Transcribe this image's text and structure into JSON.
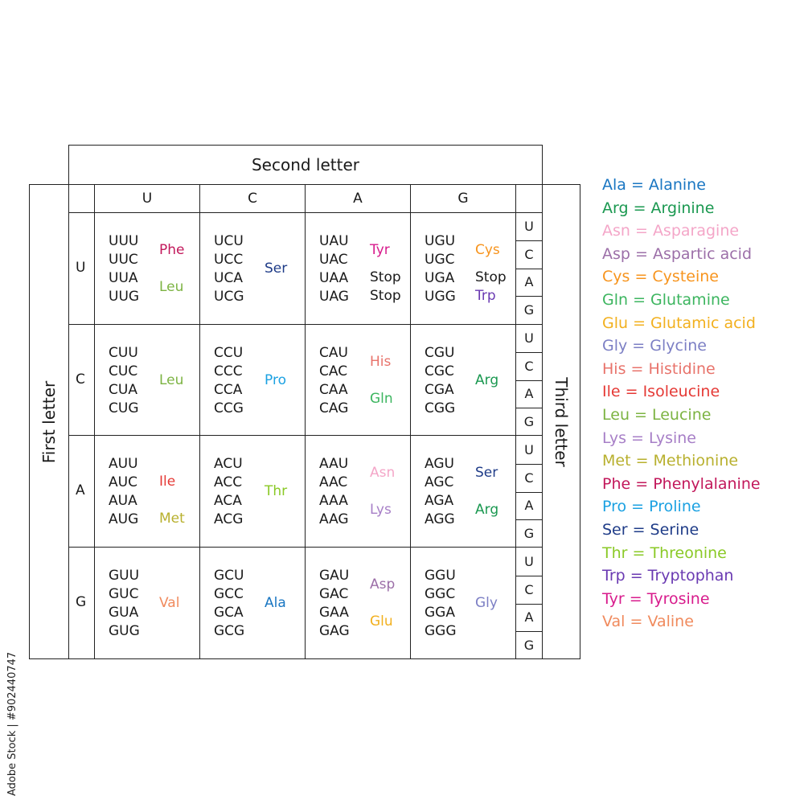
{
  "titles": {
    "second_letter": "Second letter",
    "first_letter": "First letter",
    "third_letter": "Third letter"
  },
  "bases": [
    "U",
    "C",
    "A",
    "G"
  ],
  "colors": {
    "Phe": "#c2185b",
    "Leu": "#7cb342",
    "Ser": "#1f3c88",
    "Tyr": "#d81b8c",
    "Stop": "#1a1a1a",
    "Cys": "#f7941d",
    "Trp": "#6a3ab2",
    "Pro": "#1ba1e2",
    "His": "#e8736b",
    "Gln": "#3cb55f",
    "Arg": "#1a9850",
    "Ile": "#e53935",
    "Met": "#b8b02e",
    "Thr": "#8ac926",
    "Asn": "#f4a6c8",
    "Lys": "#a77fc7",
    "Val": "#f08a5d",
    "Ala": "#1976c2",
    "Asp": "#9c6fa8",
    "Glu": "#f2b01e",
    "Gly": "#7c7fc4"
  },
  "rows": [
    {
      "first": "U",
      "cells": [
        {
          "codons": [
            "UUU",
            "UUC",
            "UUA",
            "UUG"
          ],
          "amino": [
            {
              "name": "Phe",
              "line": 0.5
            },
            {
              "name": "Leu",
              "line": 2.5
            }
          ]
        },
        {
          "codons": [
            "UCU",
            "UCC",
            "UCA",
            "UCG"
          ],
          "amino": [
            {
              "name": "Ser",
              "line": 1.5
            }
          ]
        },
        {
          "codons": [
            "UAU",
            "UAC",
            "UAA",
            "UAG"
          ],
          "amino": [
            {
              "name": "Tyr",
              "line": 0.5
            },
            {
              "name": "Stop",
              "line": 2
            },
            {
              "name": "Stop",
              "line": 3
            }
          ]
        },
        {
          "codons": [
            "UGU",
            "UGC",
            "UGA",
            "UGG"
          ],
          "amino": [
            {
              "name": "Cys",
              "line": 0.5
            },
            {
              "name": "Stop",
              "line": 2
            },
            {
              "name": "Trp",
              "line": 3
            }
          ]
        }
      ]
    },
    {
      "first": "C",
      "cells": [
        {
          "codons": [
            "CUU",
            "CUC",
            "CUA",
            "CUG"
          ],
          "amino": [
            {
              "name": "Leu",
              "line": 1.5
            }
          ]
        },
        {
          "codons": [
            "CCU",
            "CCC",
            "CCA",
            "CCG"
          ],
          "amino": [
            {
              "name": "Pro",
              "line": 1.5
            }
          ]
        },
        {
          "codons": [
            "CAU",
            "CAC",
            "CAA",
            "CAG"
          ],
          "amino": [
            {
              "name": "His",
              "line": 0.5
            },
            {
              "name": "Gln",
              "line": 2.5
            }
          ]
        },
        {
          "codons": [
            "CGU",
            "CGC",
            "CGA",
            "CGG"
          ],
          "amino": [
            {
              "name": "Arg",
              "line": 1.5
            }
          ]
        }
      ]
    },
    {
      "first": "A",
      "cells": [
        {
          "codons": [
            "AUU",
            "AUC",
            "AUA",
            "AUG"
          ],
          "amino": [
            {
              "name": "Ile",
              "line": 1
            },
            {
              "name": "Met",
              "line": 3
            }
          ]
        },
        {
          "codons": [
            "ACU",
            "ACC",
            "ACA",
            "ACG"
          ],
          "amino": [
            {
              "name": "Thr",
              "line": 1.5
            }
          ]
        },
        {
          "codons": [
            "AAU",
            "AAC",
            "AAA",
            "AAG"
          ],
          "amino": [
            {
              "name": "Asn",
              "line": 0.5
            },
            {
              "name": "Lys",
              "line": 2.5
            }
          ]
        },
        {
          "codons": [
            "AGU",
            "AGC",
            "AGA",
            "AGG"
          ],
          "amino": [
            {
              "name": "Ser",
              "line": 0.5
            },
            {
              "name": "Arg",
              "line": 2.5
            }
          ]
        }
      ]
    },
    {
      "first": "G",
      "cells": [
        {
          "codons": [
            "GUU",
            "GUC",
            "GUA",
            "GUG"
          ],
          "amino": [
            {
              "name": "Val",
              "line": 1.5
            }
          ]
        },
        {
          "codons": [
            "GCU",
            "GCC",
            "GCA",
            "GCG"
          ],
          "amino": [
            {
              "name": "Ala",
              "line": 1.5
            }
          ]
        },
        {
          "codons": [
            "GAU",
            "GAC",
            "GAA",
            "GAG"
          ],
          "amino": [
            {
              "name": "Asp",
              "line": 0.5
            },
            {
              "name": "Glu",
              "line": 2.5
            }
          ]
        },
        {
          "codons": [
            "GGU",
            "GGC",
            "GGA",
            "GGG"
          ],
          "amino": [
            {
              "name": "Gly",
              "line": 1.5
            }
          ]
        }
      ]
    }
  ],
  "legend": [
    {
      "abbr": "Ala",
      "text": "Ala = Alanine"
    },
    {
      "abbr": "Arg",
      "text": "Arg = Arginine"
    },
    {
      "abbr": "Asn",
      "text": "Asn = Asparagine"
    },
    {
      "abbr": "Asp",
      "text": "Asp = Aspartic acid"
    },
    {
      "abbr": "Cys",
      "text": "Cys = Cysteine"
    },
    {
      "abbr": "Gln",
      "text": "Gln = Glutamine"
    },
    {
      "abbr": "Glu",
      "text": "Glu = Glutamic acid"
    },
    {
      "abbr": "Gly",
      "text": "Gly = Glycine"
    },
    {
      "abbr": "His",
      "text": "His = Histidine"
    },
    {
      "abbr": "Ile",
      "text": "Ile = Isoleucine"
    },
    {
      "abbr": "Leu",
      "text": "Leu = Leucine"
    },
    {
      "abbr": "Lys",
      "text": "Lys = Lysine"
    },
    {
      "abbr": "Met",
      "text": "Met = Methionine"
    },
    {
      "abbr": "Phe",
      "text": "Phe = Phenylalanine"
    },
    {
      "abbr": "Pro",
      "text": "Pro = Proline"
    },
    {
      "abbr": "Ser",
      "text": "Ser = Serine"
    },
    {
      "abbr": "Thr",
      "text": "Thr = Threonine"
    },
    {
      "abbr": "Trp",
      "text": "Trp = Tryptophan"
    },
    {
      "abbr": "Tyr",
      "text": "Tyr = Tyrosine"
    },
    {
      "abbr": "Val",
      "text": "Val = Valine"
    }
  ],
  "watermark": "Adobe Stock | #902440747"
}
